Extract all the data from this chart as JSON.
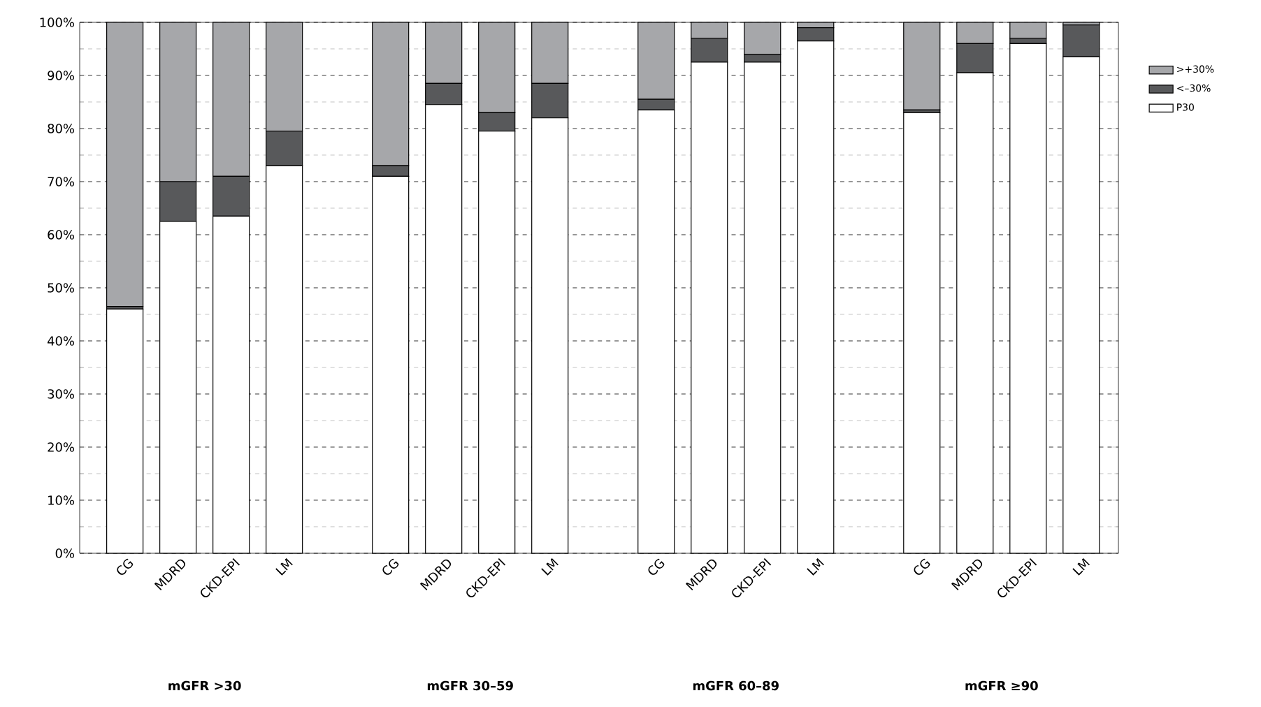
{
  "chart_data": {
    "type": "bar",
    "stacked": true,
    "categories": [
      "CG",
      "MDRD",
      "CKD-EPI",
      "LM",
      null,
      "CG",
      "MDRD",
      "CKD-EPI",
      "LM",
      null,
      "CG",
      "MDRD",
      "CKD-EPI",
      "LM",
      null,
      "CG",
      "MDRD",
      "CKD-EPI",
      "LM"
    ],
    "series": [
      {
        "name": "P30",
        "color": "#ffffff",
        "values": [
          46,
          62.5,
          63.5,
          73,
          null,
          71,
          84.5,
          79.5,
          82,
          null,
          83.5,
          92.5,
          92.5,
          96.5,
          null,
          83,
          90.5,
          96,
          93.5
        ]
      },
      {
        "name": "<–30%",
        "color": "#58595b",
        "values": [
          0.5,
          7.5,
          7.5,
          6.5,
          null,
          2,
          4,
          3.5,
          6.5,
          null,
          2,
          4.5,
          1.5,
          2.5,
          null,
          0.5,
          5.5,
          1,
          6
        ]
      },
      {
        "name": ">+30%",
        "color": "#a6a7aa",
        "values": [
          53.5,
          30,
          29,
          20.5,
          null,
          27,
          11.5,
          17,
          11.5,
          null,
          14.5,
          3,
          6,
          1,
          null,
          16.5,
          4,
          3,
          0.5
        ]
      }
    ],
    "ylim": [
      0,
      100
    ],
    "yticks": [
      {
        "value": 0,
        "label": "0%"
      },
      {
        "value": 10,
        "label": "10%"
      },
      {
        "value": 20,
        "label": "20%"
      },
      {
        "value": 30,
        "label": "30%"
      },
      {
        "value": 40,
        "label": "40%"
      },
      {
        "value": 50,
        "label": "50%"
      },
      {
        "value": 60,
        "label": "60%"
      },
      {
        "value": 70,
        "label": "70%"
      },
      {
        "value": 80,
        "label": "80%"
      },
      {
        "value": 90,
        "label": "90%"
      },
      {
        "value": 100,
        "label": "100%"
      }
    ],
    "grid": "y",
    "legend": "right",
    "annotations": [
      "mGFR >30",
      "mGFR 30–59",
      "mGFR 60–89",
      "mGFR ≥90"
    ]
  }
}
